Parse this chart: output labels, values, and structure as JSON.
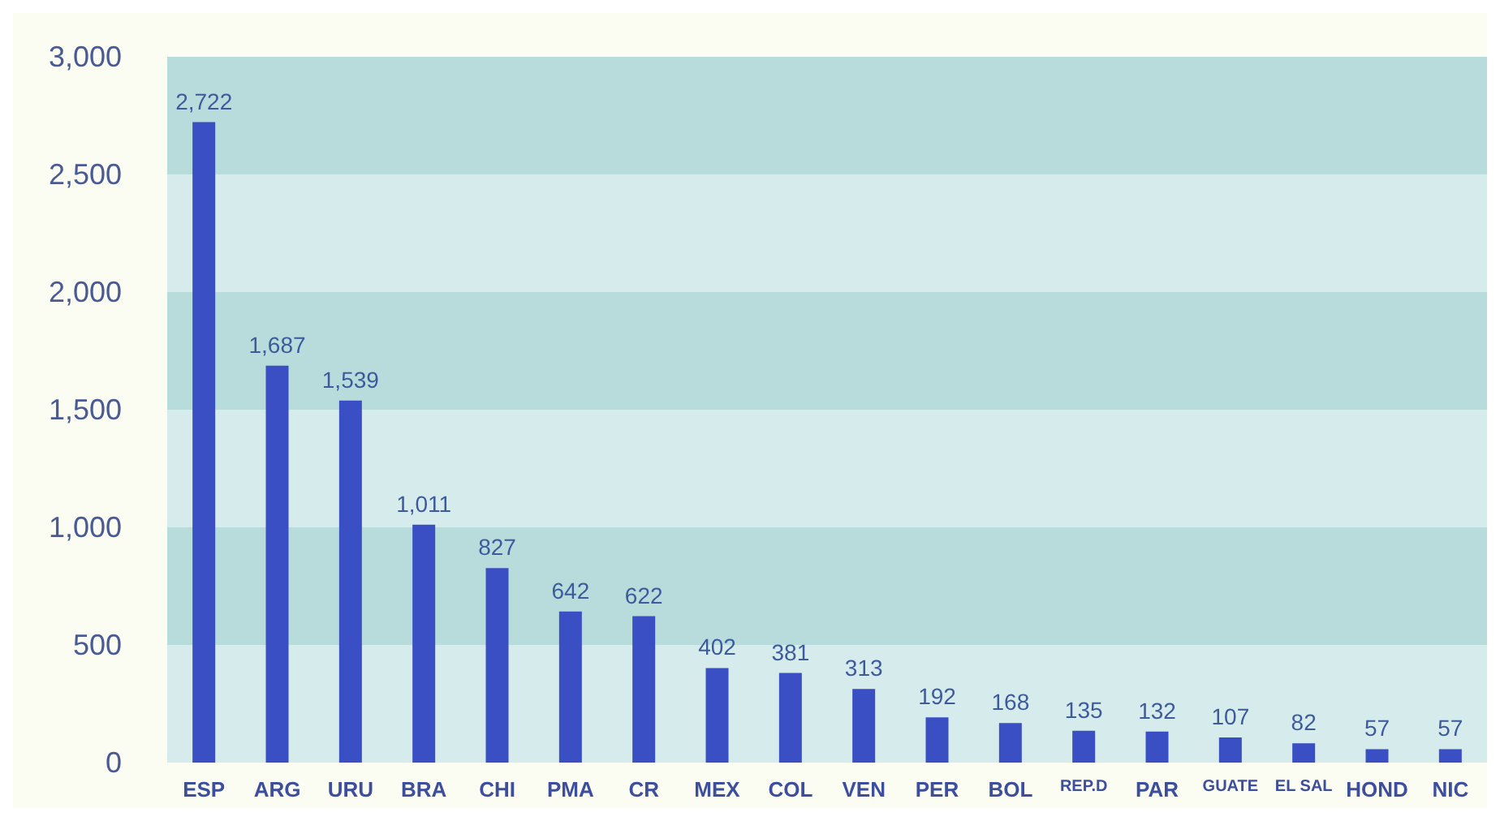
{
  "chart_data": {
    "type": "bar",
    "categories": [
      "ESP",
      "ARG",
      "URU",
      "BRA",
      "CHI",
      "PMA",
      "CR",
      "MEX",
      "COL",
      "VEN",
      "PER",
      "BOL",
      "REP.D",
      "PAR",
      "GUATE",
      "EL SAL",
      "HOND",
      "NIC"
    ],
    "values": [
      2722,
      1687,
      1539,
      1011,
      827,
      642,
      622,
      402,
      381,
      313,
      192,
      168,
      135,
      132,
      107,
      82,
      57,
      57
    ],
    "color": "#3b4fc4",
    "ylim": [
      0,
      3000
    ],
    "yticks": [
      0,
      500,
      {
        "value": 1000,
        "label": "1,000"
      },
      {
        "value": 1500,
        "label": "1,500"
      },
      {
        "value": 2000,
        "label": "2,000"
      },
      {
        "value": 2500,
        "label": "2,500"
      },
      {
        "value": 3000,
        "label": "3,000"
      }
    ],
    "value_labels": [
      "2,722",
      "1,687",
      "1,539",
      "1,011",
      "827",
      "642",
      "622",
      "402",
      "381",
      "313",
      "192",
      "168",
      "135",
      "132",
      "107",
      "82",
      "57",
      "57"
    ],
    "grid": false
  }
}
